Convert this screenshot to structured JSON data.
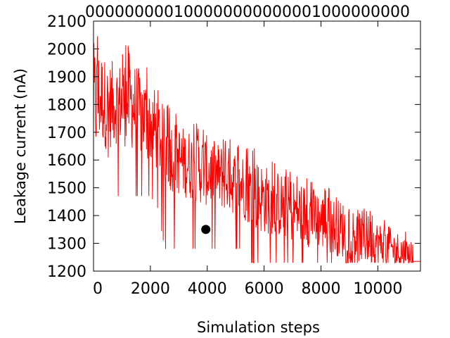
{
  "chart_data": {
    "type": "line",
    "xlabel": "Simulation steps",
    "ylabel": "Leakage current (nA)",
    "top_axis_text": "000000000100000000000001000000000",
    "xlim": [
      0,
      11500
    ],
    "ylim": [
      1200,
      2100
    ],
    "x_ticks": [
      0,
      2000,
      4000,
      6000,
      8000,
      10000
    ],
    "y_ticks": [
      1200,
      1300,
      1400,
      1500,
      1600,
      1700,
      1800,
      1900,
      2000,
      2100
    ],
    "series": [
      {
        "color": "#ff0000",
        "x": [
          0,
          250,
          500,
          750,
          1000,
          1250,
          1500,
          1750,
          2000,
          2250,
          2500,
          2750,
          3000,
          3250,
          3500,
          3750,
          4000,
          4250,
          4500,
          4750,
          5000,
          5250,
          5500,
          5750,
          6000,
          6250,
          6500,
          6750,
          7000,
          7250,
          7500,
          7750,
          8000,
          8250,
          8500,
          8750,
          9000,
          9250,
          9500,
          9750,
          10000,
          10250,
          10500,
          10750,
          11000,
          11250,
          11500
        ],
        "y": [
          1800,
          1830,
          1790,
          1810,
          1800,
          1820,
          1780,
          1760,
          1730,
          1700,
          1650,
          1620,
          1600,
          1590,
          1580,
          1570,
          1560,
          1550,
          1540,
          1530,
          1520,
          1510,
          1490,
          1470,
          1460,
          1450,
          1440,
          1430,
          1420,
          1410,
          1400,
          1390,
          1380,
          1370,
          1360,
          1350,
          1340,
          1330,
          1320,
          1310,
          1300,
          1290,
          1280,
          1270,
          1260,
          1250,
          1240
        ],
        "max_envelope": [
          2080,
          2040,
          1990,
          2000,
          1990,
          2040,
          1980,
          1960,
          1920,
          1880,
          1820,
          1790,
          1760,
          1750,
          1740,
          1730,
          1720,
          1700,
          1690,
          1680,
          1670,
          1660,
          1650,
          1640,
          1620,
          1600,
          1590,
          1580,
          1570,
          1560,
          1540,
          1530,
          1510,
          1500,
          1490,
          1480,
          1470,
          1450,
          1440,
          1420,
          1400,
          1390,
          1370,
          1360,
          1340,
          1320,
          1300
        ],
        "min_envelope": [
          1600,
          1610,
          1620,
          1470,
          1470,
          1470,
          1470,
          1470,
          1470,
          1430,
          1280,
          1280,
          1280,
          1280,
          1280,
          1280,
          1280,
          1280,
          1280,
          1280,
          1280,
          1280,
          1230,
          1230,
          1230,
          1230,
          1230,
          1230,
          1230,
          1230,
          1230,
          1230,
          1230,
          1230,
          1230,
          1230,
          1230,
          1230,
          1230,
          1230,
          1230,
          1230,
          1230,
          1230,
          1230,
          1230,
          1230
        ]
      }
    ],
    "marker": {
      "x": 3950,
      "y": 1350,
      "color": "#000000"
    },
    "grid": false
  }
}
